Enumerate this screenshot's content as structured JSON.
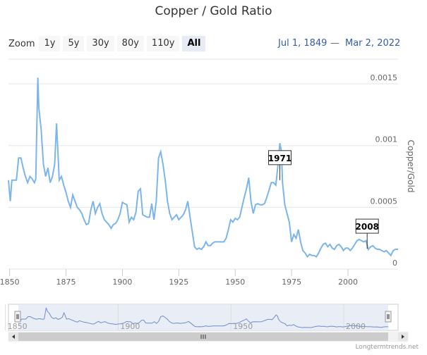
{
  "title": "Copper / Gold Ratio",
  "zoom": {
    "label": "Zoom",
    "buttons": [
      "1y",
      "5y",
      "30y",
      "80y",
      "110y",
      "All"
    ],
    "active": "All"
  },
  "range": {
    "from": "Jul 1, 1849",
    "separator": "—",
    "to": "Mar 2, 2022"
  },
  "credit": "Longtermtrends.net",
  "colors": {
    "line": "#7cb5ec",
    "navigator_fill": "#e6ebf5",
    "grid": "#e6e6e6"
  },
  "chart_data": {
    "type": "line",
    "title": "Copper / Gold Ratio",
    "ylabel": "Copper/Gold",
    "xlabel": "",
    "xlim": [
      1849.5,
      2022.2
    ],
    "ylim": [
      0,
      0.0017
    ],
    "y_ticks": [
      0,
      0.0005,
      0.001,
      0.0015
    ],
    "y_tick_labels": [
      "0",
      "0.0005",
      "0.001",
      "0.0015"
    ],
    "x_ticks": [
      1850,
      1875,
      1900,
      1925,
      1950,
      1975,
      2000
    ],
    "navigator_x_ticks": [
      1850,
      1900,
      1950,
      2000
    ],
    "grid": true,
    "legend": "none",
    "annotations": [
      {
        "label": "1971",
        "x": 1969.8,
        "y": 0.00072
      },
      {
        "label": "2008",
        "x": 2008.5,
        "y": 0.000165
      }
    ],
    "series": [
      {
        "name": "Copper/Gold",
        "points": [
          [
            1849.5,
            0.00072
          ],
          [
            1850.3,
            0.00055
          ],
          [
            1851,
            0.00072
          ],
          [
            1853,
            0.00072
          ],
          [
            1854,
            0.0009
          ],
          [
            1855,
            0.0009
          ],
          [
            1856,
            0.00082
          ],
          [
            1857,
            0.00075
          ],
          [
            1858,
            0.0007
          ],
          [
            1859,
            0.00075
          ],
          [
            1860,
            0.00073
          ],
          [
            1861,
            0.0007
          ],
          [
            1861.6,
            0.00073
          ],
          [
            1862,
            0.0011
          ],
          [
            1862.5,
            0.00155
          ],
          [
            1863,
            0.0013
          ],
          [
            1864,
            0.00113
          ],
          [
            1865,
            0.00085
          ],
          [
            1866,
            0.00075
          ],
          [
            1867,
            0.00082
          ],
          [
            1868,
            0.0007
          ],
          [
            1869,
            0.00075
          ],
          [
            1870,
            0.00085
          ],
          [
            1870.8,
            0.00118
          ],
          [
            1871.5,
            0.00092
          ],
          [
            1872,
            0.00072
          ],
          [
            1873,
            0.00075
          ],
          [
            1874,
            0.00068
          ],
          [
            1875,
            0.00062
          ],
          [
            1876,
            0.00055
          ],
          [
            1877,
            0.0005
          ],
          [
            1878,
            0.0006
          ],
          [
            1879,
            0.00055
          ],
          [
            1880,
            0.0005
          ],
          [
            1881,
            0.00048
          ],
          [
            1882,
            0.00045
          ],
          [
            1883,
            0.0004
          ],
          [
            1884,
            0.00036
          ],
          [
            1885,
            0.00037
          ],
          [
            1886,
            0.00048
          ],
          [
            1887,
            0.00055
          ],
          [
            1888,
            0.00045
          ],
          [
            1889,
            0.0005
          ],
          [
            1890,
            0.00053
          ],
          [
            1891,
            0.00045
          ],
          [
            1892,
            0.0004
          ],
          [
            1893,
            0.00038
          ],
          [
            1894,
            0.00036
          ],
          [
            1895,
            0.00033
          ],
          [
            1896,
            0.00036
          ],
          [
            1897,
            0.00037
          ],
          [
            1898,
            0.0004
          ],
          [
            1899,
            0.00045
          ],
          [
            1900,
            0.00054
          ],
          [
            1901,
            0.00053
          ],
          [
            1902,
            0.00052
          ],
          [
            1903,
            0.00038
          ],
          [
            1904,
            0.00042
          ],
          [
            1905,
            0.0004
          ],
          [
            1906,
            0.00046
          ],
          [
            1907,
            0.00063
          ],
          [
            1908,
            0.00065
          ],
          [
            1909,
            0.00044
          ],
          [
            1910,
            0.00043
          ],
          [
            1911,
            0.00042
          ],
          [
            1912,
            0.00042
          ],
          [
            1913,
            0.00053
          ],
          [
            1914,
            0.0004
          ],
          [
            1915,
            0.00055
          ],
          [
            1916,
            0.0009
          ],
          [
            1917,
            0.00095
          ],
          [
            1918,
            0.00085
          ],
          [
            1919,
            0.00072
          ],
          [
            1920,
            0.00055
          ],
          [
            1921,
            0.00045
          ],
          [
            1922,
            0.0004
          ],
          [
            1923,
            0.00042
          ],
          [
            1924,
            0.00044
          ],
          [
            1925,
            0.0004
          ],
          [
            1926,
            0.00042
          ],
          [
            1927,
            0.00044
          ],
          [
            1928,
            0.00048
          ],
          [
            1929,
            0.00055
          ],
          [
            1930,
            0.00042
          ],
          [
            1931,
            0.0003
          ],
          [
            1932,
            0.00018
          ],
          [
            1933,
            0.00016
          ],
          [
            1934,
            0.00017
          ],
          [
            1935,
            0.00016
          ],
          [
            1936,
            0.00018
          ],
          [
            1937,
            0.00022
          ],
          [
            1938,
            0.00019
          ],
          [
            1939,
            0.00019
          ],
          [
            1940,
            0.00021
          ],
          [
            1941,
            0.00022
          ],
          [
            1942,
            0.00022
          ],
          [
            1943,
            0.00022
          ],
          [
            1944,
            0.00022
          ],
          [
            1945,
            0.00022
          ],
          [
            1946,
            0.00025
          ],
          [
            1947,
            0.00032
          ],
          [
            1948,
            0.0004
          ],
          [
            1949,
            0.00038
          ],
          [
            1950,
            0.00041
          ],
          [
            1951,
            0.0004
          ],
          [
            1952,
            0.00042
          ],
          [
            1953,
            0.0005
          ],
          [
            1954,
            0.00058
          ],
          [
            1955,
            0.00065
          ],
          [
            1956,
            0.00074
          ],
          [
            1957,
            0.00055
          ],
          [
            1958,
            0.00045
          ],
          [
            1959,
            0.00052
          ],
          [
            1960,
            0.00053
          ],
          [
            1961,
            0.00052
          ],
          [
            1962,
            0.00052
          ],
          [
            1963,
            0.00053
          ],
          [
            1964,
            0.00058
          ],
          [
            1965,
            0.00064
          ],
          [
            1966,
            0.0007
          ],
          [
            1967,
            0.0007
          ],
          [
            1968,
            0.00068
          ],
          [
            1969,
            0.00085
          ],
          [
            1969.8,
            0.00102
          ],
          [
            1970.5,
            0.00095
          ],
          [
            1971,
            0.0007
          ],
          [
            1972,
            0.00052
          ],
          [
            1973,
            0.00045
          ],
          [
            1974,
            0.00038
          ],
          [
            1975,
            0.00022
          ],
          [
            1976,
            0.00028
          ],
          [
            1977,
            0.00025
          ],
          [
            1978,
            0.00032
          ],
          [
            1979,
            0.00022
          ],
          [
            1980,
            0.00015
          ],
          [
            1981,
            0.00013
          ],
          [
            1982,
            0.0001
          ],
          [
            1983,
            0.00012
          ],
          [
            1984,
            0.00011
          ],
          [
            1985,
            0.00011
          ],
          [
            1986,
            0.0001
          ],
          [
            1987,
            0.00013
          ],
          [
            1988,
            0.00017
          ],
          [
            1989,
            0.0002
          ],
          [
            1990,
            0.00021
          ],
          [
            1991,
            0.00018
          ],
          [
            1992,
            0.0002
          ],
          [
            1993,
            0.00017
          ],
          [
            1994,
            0.00016
          ],
          [
            1995,
            0.00019
          ],
          [
            1996,
            0.0002
          ],
          [
            1997,
            0.00018
          ],
          [
            1998,
            0.00015
          ],
          [
            1999,
            0.00017
          ],
          [
            2000,
            0.00017
          ],
          [
            2001,
            0.00015
          ],
          [
            2002,
            0.00017
          ],
          [
            2003,
            0.0002
          ],
          [
            2004,
            0.00023
          ],
          [
            2005,
            0.00024
          ],
          [
            2006,
            0.00023
          ],
          [
            2007,
            0.00022
          ],
          [
            2008,
            0.00023
          ],
          [
            2009,
            0.00016
          ],
          [
            2010,
            0.00018
          ],
          [
            2011,
            0.00019
          ],
          [
            2012,
            0.00017
          ],
          [
            2013,
            0.00016
          ],
          [
            2014,
            0.00016
          ],
          [
            2015,
            0.00015
          ],
          [
            2016,
            0.00014
          ],
          [
            2017,
            0.00015
          ],
          [
            2018,
            0.00013
          ],
          [
            2019,
            0.00011
          ],
          [
            2020,
            0.00015
          ],
          [
            2021,
            0.00016
          ],
          [
            2022.2,
            0.00016
          ]
        ]
      }
    ]
  }
}
